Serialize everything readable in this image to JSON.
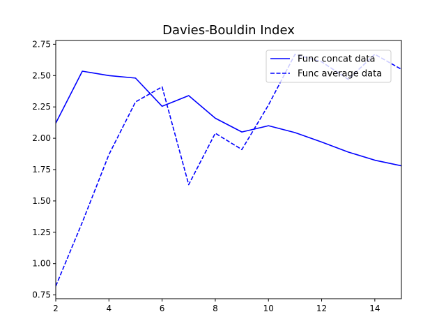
{
  "chart_data": {
    "type": "line",
    "title": "Davies-Bouldin Index",
    "xlabel": "",
    "ylabel": "",
    "xlim": [
      2,
      15
    ],
    "ylim": [
      0.72,
      2.78
    ],
    "x_ticks": [
      2,
      4,
      6,
      8,
      10,
      12,
      14
    ],
    "y_ticks": [
      0.75,
      1.0,
      1.25,
      1.5,
      1.75,
      2.0,
      2.25,
      2.5,
      2.75
    ],
    "y_tick_labels": [
      "0.75",
      "1.00",
      "1.25",
      "1.50",
      "1.75",
      "2.00",
      "2.25",
      "2.50",
      "2.75"
    ],
    "grid": false,
    "legend_position": "top-right",
    "series": [
      {
        "name": "Func concat data",
        "style": "solid",
        "color": "#0000ff",
        "x": [
          2,
          3,
          4,
          5,
          6,
          7,
          8,
          9,
          10,
          11,
          12,
          13,
          14,
          15
        ],
        "values": [
          2.12,
          2.535,
          2.5,
          2.48,
          2.255,
          2.34,
          2.16,
          2.05,
          2.1,
          2.045,
          1.97,
          1.89,
          1.825,
          1.78
        ]
      },
      {
        "name": "Func average data",
        "style": "dashed",
        "color": "#0000ff",
        "x": [
          2,
          3,
          4,
          5,
          6,
          7,
          8,
          9,
          10,
          11,
          12,
          13,
          14,
          15
        ],
        "values": [
          0.82,
          1.33,
          1.87,
          2.29,
          2.41,
          1.63,
          2.04,
          1.91,
          2.265,
          2.67,
          2.61,
          2.47,
          2.67,
          2.55
        ]
      }
    ]
  }
}
